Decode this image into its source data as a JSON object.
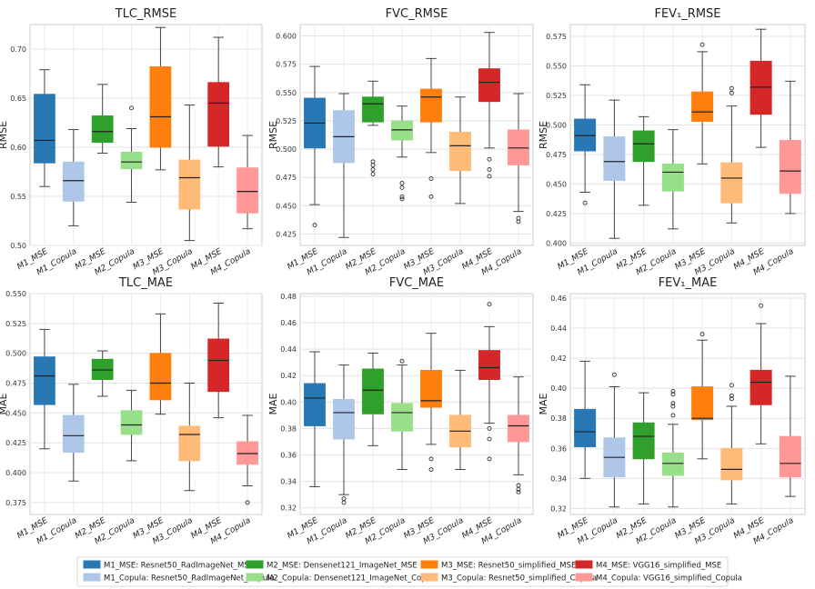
{
  "chart_data": [
    {
      "type": "box",
      "title": "TLC_RMSE",
      "ylabel": "RMSE",
      "ylim": [
        0.5,
        0.725
      ],
      "yticks": [
        "0.50",
        "0.55",
        "0.60",
        "0.65",
        "0.70"
      ],
      "categories": [
        "M1_MSE",
        "M1_Copula",
        "M2_MSE",
        "M2_Copula",
        "M3_MSE",
        "M3_Copula",
        "M4_MSE",
        "M4_Copula"
      ],
      "boxes": [
        {
          "whislo": 0.56,
          "q1": 0.584,
          "med": 0.607,
          "q3": 0.654,
          "whishi": 0.679,
          "fliers": []
        },
        {
          "whislo": 0.52,
          "q1": 0.545,
          "med": 0.566,
          "q3": 0.585,
          "whishi": 0.618,
          "fliers": []
        },
        {
          "whislo": 0.594,
          "q1": 0.605,
          "med": 0.616,
          "q3": 0.632,
          "whishi": 0.664,
          "fliers": []
        },
        {
          "whislo": 0.544,
          "q1": 0.578,
          "med": 0.585,
          "q3": 0.595,
          "whishi": 0.619,
          "fliers": [
            0.64
          ]
        },
        {
          "whislo": 0.577,
          "q1": 0.6,
          "med": 0.631,
          "q3": 0.682,
          "whishi": 0.722,
          "fliers": []
        },
        {
          "whislo": 0.505,
          "q1": 0.537,
          "med": 0.569,
          "q3": 0.587,
          "whishi": 0.643,
          "fliers": []
        },
        {
          "whislo": 0.58,
          "q1": 0.601,
          "med": 0.645,
          "q3": 0.666,
          "whishi": 0.712,
          "fliers": []
        },
        {
          "whislo": 0.517,
          "q1": 0.533,
          "med": 0.555,
          "q3": 0.579,
          "whishi": 0.612,
          "fliers": []
        }
      ]
    },
    {
      "type": "box",
      "title": "FVC_RMSE",
      "ylabel": "RMSE",
      "ylim": [
        0.415,
        0.61
      ],
      "yticks": [
        "0.425",
        "0.450",
        "0.475",
        "0.500",
        "0.525",
        "0.550",
        "0.575",
        "0.600"
      ],
      "categories": [
        "M1_MSE",
        "M1_Copula",
        "M2_MSE",
        "M2_Copula",
        "M3_MSE",
        "M3_Copula",
        "M4_MSE",
        "M4_Copula"
      ],
      "boxes": [
        {
          "whislo": 0.451,
          "q1": 0.501,
          "med": 0.523,
          "q3": 0.545,
          "whishi": 0.573,
          "fliers": [
            0.433
          ]
        },
        {
          "whislo": 0.422,
          "q1": 0.488,
          "med": 0.511,
          "q3": 0.534,
          "whishi": 0.549,
          "fliers": []
        },
        {
          "whislo": 0.521,
          "q1": 0.524,
          "med": 0.54,
          "q3": 0.546,
          "whishi": 0.56,
          "fliers": [
            0.478,
            0.482,
            0.486,
            0.489
          ]
        },
        {
          "whislo": 0.493,
          "q1": 0.508,
          "med": 0.517,
          "q3": 0.525,
          "whishi": 0.538,
          "fliers": [
            0.456,
            0.458,
            0.466,
            0.47
          ]
        },
        {
          "whislo": 0.497,
          "q1": 0.524,
          "med": 0.546,
          "q3": 0.553,
          "whishi": 0.58,
          "fliers": [
            0.458,
            0.474
          ]
        },
        {
          "whislo": 0.452,
          "q1": 0.481,
          "med": 0.503,
          "q3": 0.515,
          "whishi": 0.546,
          "fliers": []
        },
        {
          "whislo": 0.501,
          "q1": 0.542,
          "med": 0.559,
          "q3": 0.571,
          "whishi": 0.603,
          "fliers": [
            0.476,
            0.482,
            0.491
          ]
        },
        {
          "whislo": 0.445,
          "q1": 0.486,
          "med": 0.501,
          "q3": 0.517,
          "whishi": 0.549,
          "fliers": [
            0.436,
            0.439
          ]
        }
      ]
    },
    {
      "type": "box",
      "title": "FEV₁_RMSE",
      "ylabel": "RMSE",
      "ylim": [
        0.398,
        0.585
      ],
      "yticks": [
        "0.400",
        "0.425",
        "0.450",
        "0.475",
        "0.500",
        "0.525",
        "0.550",
        "0.575"
      ],
      "categories": [
        "M1_MSE",
        "M1_Copula",
        "M2_MSE",
        "M2_Copula",
        "M3_MSE",
        "M3_Copula",
        "M4_MSE",
        "M4_Copula"
      ],
      "boxes": [
        {
          "whislo": 0.443,
          "q1": 0.478,
          "med": 0.491,
          "q3": 0.505,
          "whishi": 0.534,
          "fliers": [
            0.434
          ]
        },
        {
          "whislo": 0.404,
          "q1": 0.453,
          "med": 0.469,
          "q3": 0.49,
          "whishi": 0.521,
          "fliers": []
        },
        {
          "whislo": 0.432,
          "q1": 0.469,
          "med": 0.484,
          "q3": 0.495,
          "whishi": 0.507,
          "fliers": []
        },
        {
          "whislo": 0.412,
          "q1": 0.444,
          "med": 0.46,
          "q3": 0.467,
          "whishi": 0.496,
          "fliers": []
        },
        {
          "whislo": 0.467,
          "q1": 0.503,
          "med": 0.511,
          "q3": 0.528,
          "whishi": 0.562,
          "fliers": [
            0.568
          ]
        },
        {
          "whislo": 0.417,
          "q1": 0.434,
          "med": 0.455,
          "q3": 0.468,
          "whishi": 0.516,
          "fliers": [
            0.527,
            0.531
          ]
        },
        {
          "whislo": 0.481,
          "q1": 0.509,
          "med": 0.532,
          "q3": 0.554,
          "whishi": 0.581,
          "fliers": []
        },
        {
          "whislo": 0.425,
          "q1": 0.442,
          "med": 0.461,
          "q3": 0.487,
          "whishi": 0.537,
          "fliers": []
        }
      ]
    },
    {
      "type": "box",
      "title": "TLC_MAE",
      "ylabel": "MAE",
      "ylim": [
        0.365,
        0.55
      ],
      "yticks": [
        "0.375",
        "0.400",
        "0.425",
        "0.450",
        "0.475",
        "0.500",
        "0.525",
        "0.550"
      ],
      "categories": [
        "M1_MSE",
        "M1_Copula",
        "M2_MSE",
        "M2_Copula",
        "M3_MSE",
        "M3_Copula",
        "M4_MSE",
        "M4_Copula"
      ],
      "boxes": [
        {
          "whislo": 0.42,
          "q1": 0.457,
          "med": 0.481,
          "q3": 0.497,
          "whishi": 0.52,
          "fliers": []
        },
        {
          "whislo": 0.393,
          "q1": 0.417,
          "med": 0.431,
          "q3": 0.448,
          "whishi": 0.474,
          "fliers": []
        },
        {
          "whislo": 0.464,
          "q1": 0.478,
          "med": 0.486,
          "q3": 0.495,
          "whishi": 0.502,
          "fliers": []
        },
        {
          "whislo": 0.41,
          "q1": 0.432,
          "med": 0.44,
          "q3": 0.452,
          "whishi": 0.469,
          "fliers": []
        },
        {
          "whislo": 0.449,
          "q1": 0.461,
          "med": 0.475,
          "q3": 0.5,
          "whishi": 0.533,
          "fliers": []
        },
        {
          "whislo": 0.385,
          "q1": 0.41,
          "med": 0.432,
          "q3": 0.439,
          "whishi": 0.475,
          "fliers": []
        },
        {
          "whislo": 0.446,
          "q1": 0.468,
          "med": 0.494,
          "q3": 0.512,
          "whishi": 0.542,
          "fliers": []
        },
        {
          "whislo": 0.389,
          "q1": 0.407,
          "med": 0.416,
          "q3": 0.426,
          "whishi": 0.448,
          "fliers": [
            0.375
          ]
        }
      ]
    },
    {
      "type": "box",
      "title": "FVC_MAE",
      "ylabel": "MAE",
      "ylim": [
        0.315,
        0.482
      ],
      "yticks": [
        "0.32",
        "0.34",
        "0.36",
        "0.38",
        "0.40",
        "0.42",
        "0.44",
        "0.46",
        "0.48"
      ],
      "categories": [
        "M1_MSE",
        "M1_Copula",
        "M2_MSE",
        "M2_Copula",
        "M3_MSE",
        "M3_Copula",
        "M4_MSE",
        "M4_Copula"
      ],
      "boxes": [
        {
          "whislo": 0.336,
          "q1": 0.382,
          "med": 0.403,
          "q3": 0.414,
          "whishi": 0.438,
          "fliers": []
        },
        {
          "whislo": 0.33,
          "q1": 0.372,
          "med": 0.392,
          "q3": 0.402,
          "whishi": 0.428,
          "fliers": [
            0.324,
            0.327
          ]
        },
        {
          "whislo": 0.367,
          "q1": 0.391,
          "med": 0.409,
          "q3": 0.425,
          "whishi": 0.437,
          "fliers": []
        },
        {
          "whislo": 0.349,
          "q1": 0.378,
          "med": 0.392,
          "q3": 0.399,
          "whishi": 0.428,
          "fliers": [
            0.431
          ]
        },
        {
          "whislo": 0.368,
          "q1": 0.396,
          "med": 0.401,
          "q3": 0.424,
          "whishi": 0.452,
          "fliers": [
            0.349,
            0.357
          ]
        },
        {
          "whislo": 0.349,
          "q1": 0.366,
          "med": 0.378,
          "q3": 0.39,
          "whishi": 0.424,
          "fliers": []
        },
        {
          "whislo": 0.384,
          "q1": 0.417,
          "med": 0.426,
          "q3": 0.439,
          "whishi": 0.457,
          "fliers": [
            0.357,
            0.372,
            0.38,
            0.474
          ]
        },
        {
          "whislo": 0.345,
          "q1": 0.37,
          "med": 0.382,
          "q3": 0.39,
          "whishi": 0.419,
          "fliers": [
            0.332,
            0.334,
            0.337
          ]
        }
      ]
    },
    {
      "type": "box",
      "title": "FEV₁_MAE",
      "ylabel": "MAE",
      "ylim": [
        0.316,
        0.463
      ],
      "yticks": [
        "0.32",
        "0.34",
        "0.36",
        "0.38",
        "0.40",
        "0.42",
        "0.44",
        "0.46"
      ],
      "categories": [
        "M1_MSE",
        "M1_Copula",
        "M2_MSE",
        "M2_Copula",
        "M3_MSE",
        "M3_Copula",
        "M4_MSE",
        "M4_Copula"
      ],
      "boxes": [
        {
          "whislo": 0.34,
          "q1": 0.361,
          "med": 0.371,
          "q3": 0.386,
          "whishi": 0.418,
          "fliers": []
        },
        {
          "whislo": 0.321,
          "q1": 0.341,
          "med": 0.354,
          "q3": 0.367,
          "whishi": 0.401,
          "fliers": [
            0.409
          ]
        },
        {
          "whislo": 0.323,
          "q1": 0.353,
          "med": 0.368,
          "q3": 0.377,
          "whishi": 0.397,
          "fliers": []
        },
        {
          "whislo": 0.321,
          "q1": 0.342,
          "med": 0.35,
          "q3": 0.357,
          "whishi": 0.376,
          "fliers": [
            0.382,
            0.388,
            0.39,
            0.396,
            0.398
          ]
        },
        {
          "whislo": 0.353,
          "q1": 0.379,
          "med": 0.38,
          "q3": 0.401,
          "whishi": 0.432,
          "fliers": [
            0.436
          ]
        },
        {
          "whislo": 0.323,
          "q1": 0.339,
          "med": 0.346,
          "q3": 0.36,
          "whishi": 0.388,
          "fliers": [
            0.393,
            0.395,
            0.402
          ]
        },
        {
          "whislo": 0.363,
          "q1": 0.389,
          "med": 0.404,
          "q3": 0.412,
          "whishi": 0.443,
          "fliers": [
            0.455
          ]
        },
        {
          "whislo": 0.328,
          "q1": 0.341,
          "med": 0.35,
          "q3": 0.368,
          "whishi": 0.408,
          "fliers": []
        }
      ]
    }
  ],
  "xticklabels": [
    "M1_MSE",
    "M1_Copula",
    "M2_MSE",
    "M2_Copula",
    "M3_MSE",
    "M3_Copula",
    "M4_MSE",
    "M4_Copula"
  ],
  "legend": [
    {
      "label": "M1_MSE: Resnet50_RadImageNet_MSE",
      "color": "#2878b5"
    },
    {
      "label": "M2_MSE: Densenet121_ImageNet_MSE",
      "color": "#2fa02b"
    },
    {
      "label": "M3_MSE: Resnet50_simplified_MSE",
      "color": "#ff7f0e"
    },
    {
      "label": "M4_MSE: VGG16_simplified_MSE",
      "color": "#d62728"
    },
    {
      "label": "M1_Copula: Resnet50_RadImageNet_Copula",
      "color": "#aec7e8"
    },
    {
      "label": "M2_Copula: Densenet121_ImageNet_Copula",
      "color": "#98df8a"
    },
    {
      "label": "M3_Copula: Resnet50_simplified_Copula",
      "color": "#ffbb78"
    },
    {
      "label": "M4_Copula: VGG16_simplified_Copula",
      "color": "#ff9896"
    }
  ],
  "box_colors": [
    "#2878b5",
    "#aec7e8",
    "#2fa02b",
    "#98df8a",
    "#ff7f0e",
    "#ffbb78",
    "#d62728",
    "#ff9896"
  ],
  "grid": true,
  "legend_position": "bottom"
}
